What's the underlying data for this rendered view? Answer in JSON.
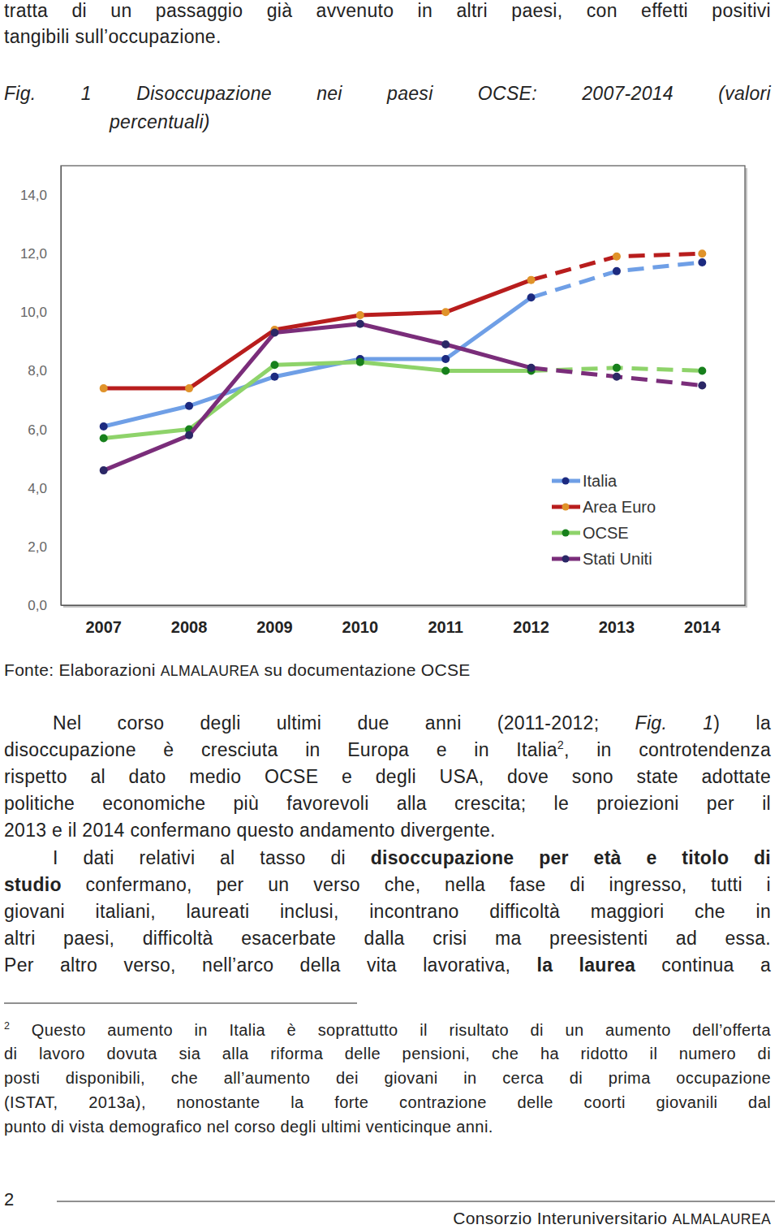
{
  "page_top": [
    [
      "tratta di un passaggio già avvenuto in altri paesi, con effetti positivi"
    ],
    [
      "tangibili sull’occupazione."
    ]
  ],
  "chart_data": {
    "type": "line",
    "title": "Fig. 1 Disoccupazione nei paesi OCSE: 2007-2014 (valori\npercentuali)",
    "categories": [
      "2007",
      "2008",
      "2009",
      "2010",
      "2011",
      "2012",
      "2013",
      "2014"
    ],
    "series": [
      {
        "name": "Italia",
        "color": "#6f9fe6",
        "line_style": "solid",
        "values": [
          6.1,
          6.8,
          7.8,
          8.4,
          8.4,
          10.5,
          null,
          null
        ],
        "projection": [
          null,
          null,
          null,
          null,
          null,
          10.5,
          11.4,
          11.7
        ]
      },
      {
        "name": "Area Euro",
        "color": "#b81d1d",
        "line_style": "solid",
        "values": [
          7.4,
          7.4,
          9.4,
          9.9,
          10.0,
          11.1,
          null,
          null
        ],
        "projection": [
          null,
          null,
          null,
          null,
          null,
          11.1,
          11.9,
          12.0
        ]
      },
      {
        "name": "OCSE",
        "color": "#8ed36a",
        "line_style": "solid",
        "values": [
          5.7,
          6.0,
          8.2,
          8.3,
          8.0,
          8.0,
          null,
          null
        ],
        "projection": [
          null,
          null,
          null,
          null,
          null,
          8.0,
          8.1,
          8.0
        ]
      },
      {
        "name": "Stati Uniti",
        "color": "#7a2d7a",
        "line_style": "solid",
        "values": [
          4.6,
          5.8,
          9.3,
          9.6,
          8.9,
          8.1,
          null,
          null
        ],
        "projection": [
          null,
          null,
          null,
          null,
          null,
          8.1,
          7.8,
          7.5
        ]
      }
    ],
    "ylim": [
      0,
      15
    ],
    "yticks": [
      {
        "value": 0,
        "label": "0,0"
      },
      {
        "value": 2,
        "label": "2,0"
      },
      {
        "value": 4,
        "label": "4,0"
      },
      {
        "value": 6,
        "label": "6,0"
      },
      {
        "value": 8,
        "label": "8,0"
      },
      {
        "value": 10,
        "label": "10,0"
      },
      {
        "value": 12,
        "label": "12,0"
      },
      {
        "value": 14,
        "label": "14,0"
      }
    ],
    "grid": false,
    "legend": "lower right",
    "marker": "circle"
  },
  "source": [
    "Fonte: Elaborazioni ",
    {
      "text": "ALMALAUREA",
      "format": "smallcaps"
    },
    " su documentazione OCSE"
  ],
  "body": [
    {
      "lines": [
        [
          "Nel corso degli ultimi due anni (2011-2012; ",
          {
            "text": "Fig. 1",
            "format": "italic"
          },
          ") la"
        ],
        [
          "disoccupazione è cresciuta in Europa e in Italia",
          {
            "text": "2",
            "format": "sup"
          },
          ", in controtendenza"
        ],
        [
          "rispetto al dato medio OCSE e degli USA, dove sono state adottate"
        ],
        [
          "politiche economiche più favorevoli alla crescita; le proiezioni per il"
        ],
        [
          "2013 e il 2014 confermano questo andamento divergente."
        ]
      ]
    },
    {
      "lines": [
        [
          "I dati relativi al tasso di ",
          {
            "text": "disoccupazione per età e titolo di",
            "format": "bold"
          }
        ],
        [
          {
            "text": "studio",
            "format": "bold"
          },
          " confermano, per un verso che, nella fase di ingresso, tutti i"
        ],
        [
          "giovani italiani, laureati inclusi, incontrano difficoltà maggiori che in"
        ],
        [
          "altri paesi, difficoltà esacerbate dalla crisi ma preesistenti ad essa."
        ],
        [
          "Per altro verso, nell’arco della vita lavorativa, ",
          {
            "text": "la laurea",
            "format": "bold"
          },
          " continua a"
        ]
      ]
    }
  ],
  "footnote": [
    [
      {
        "text": "2",
        "format": "sup"
      },
      " Questo aumento in Italia è soprattutto il risultato di un aumento dell’offerta"
    ],
    [
      "di lavoro dovuta sia alla riforma delle pensioni, che ha ridotto il numero di"
    ],
    [
      "posti disponibili, che all’aumento dei giovani in cerca di prima occupazione"
    ],
    [
      "(ISTAT, 2013a), nonostante la forte contrazione delle coorti giovanili dal"
    ],
    [
      "punto di vista demografico nel corso degli ultimi venticinque anni."
    ]
  ],
  "footer": {
    "page_number": "2",
    "text": [
      "Consorzio Interuniversitario ",
      {
        "text": "ALMALAUREA",
        "format": "smallcaps"
      }
    ]
  }
}
